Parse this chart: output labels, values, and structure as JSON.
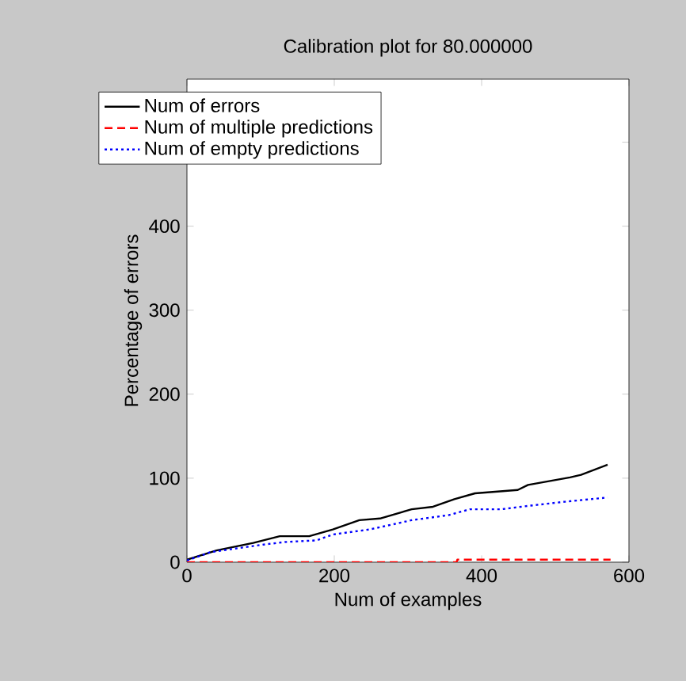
{
  "chart_data": {
    "type": "line",
    "title": "Calibration plot for 80.000000",
    "xlabel": "Num of examples",
    "ylabel": "Percentage of errors",
    "xlim": [
      0,
      600
    ],
    "xticks": [
      0,
      200,
      400,
      600
    ],
    "ylim": [
      0,
      575
    ],
    "yticks": [
      0,
      100,
      200,
      300,
      400,
      {
        "value": 500,
        "label": null
      }
    ],
    "legend": "top left",
    "series": [
      {
        "name": "Num of errors",
        "color": "#000000",
        "line_style": "solid",
        "x": [
          0,
          40,
          90,
          126,
          166,
          198,
          234,
          262,
          305,
          334,
          363,
          391,
          449,
          463,
          520,
          535,
          571
        ],
        "values": [
          3,
          14,
          23,
          31,
          31,
          39,
          50,
          52,
          63,
          66,
          75,
          82,
          86,
          92,
          101,
          104,
          116
        ]
      },
      {
        "name": "Num of multiple predictions",
        "color": "#ff0000",
        "line_style": "dashed",
        "x": [
          0,
          366,
          367,
          575
        ],
        "values": [
          0,
          0,
          3,
          3
        ]
      },
      {
        "name": "Num of empty predictions",
        "color": "#0000ff",
        "line_style": "dotted",
        "x": [
          0,
          32,
          104,
          133,
          176,
          198,
          248,
          305,
          355,
          384,
          427,
          463,
          513,
          571
        ],
        "values": [
          2,
          12,
          21,
          24,
          26,
          33,
          39,
          50,
          56,
          63,
          63,
          67,
          72,
          77
        ]
      }
    ]
  }
}
